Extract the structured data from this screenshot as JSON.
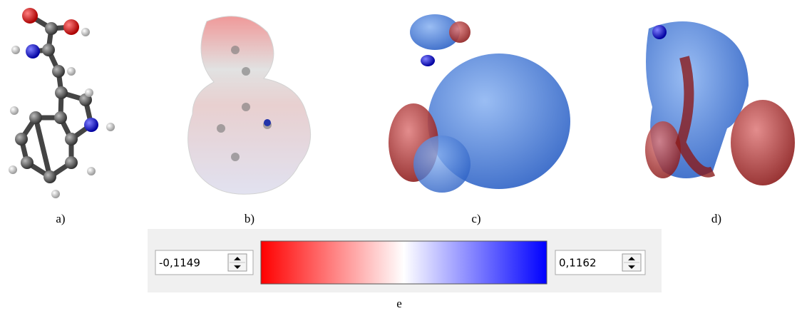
{
  "panels": [
    {
      "label": "a)"
    },
    {
      "label": "b)"
    },
    {
      "label": "c)"
    },
    {
      "label": "d)"
    }
  ],
  "color_scale": {
    "label": "e",
    "min_text": "-0,1149",
    "max_text": "0,1162"
  }
}
